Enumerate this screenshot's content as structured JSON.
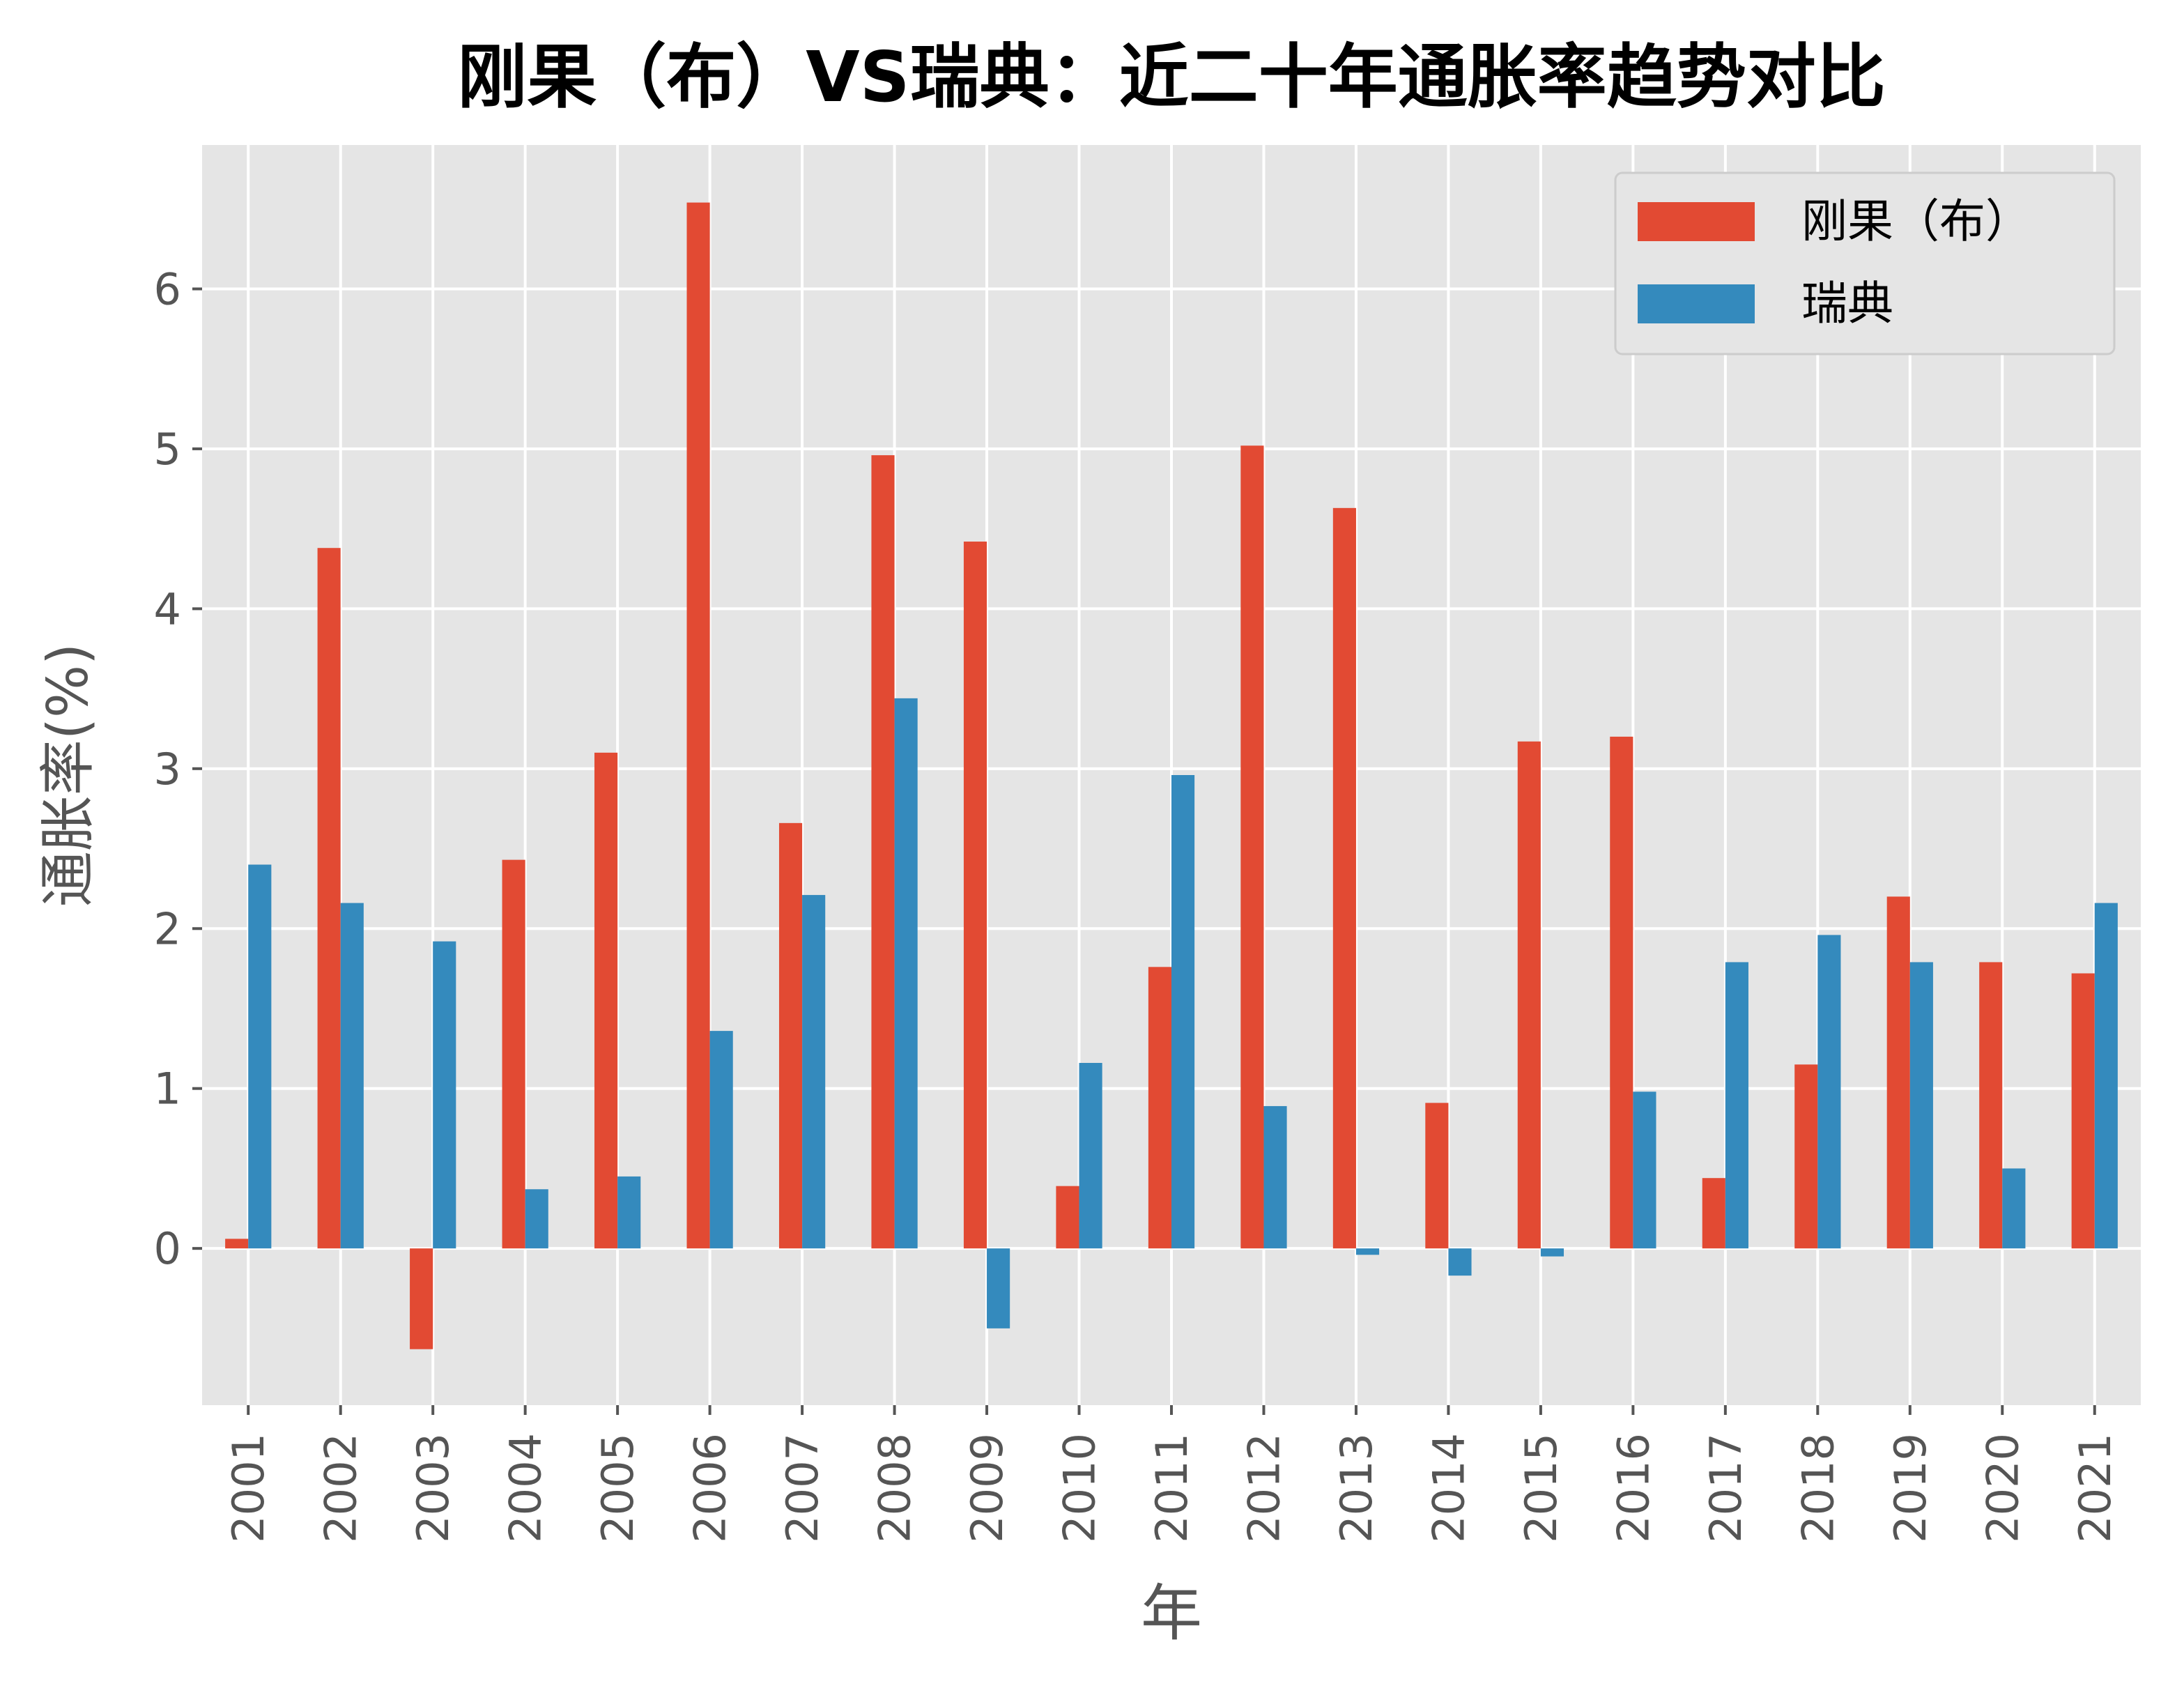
{
  "chart_data": {
    "type": "bar",
    "title": "刚果（布）VS瑞典：近二十年通胀率趋势对比",
    "xlabel": "年",
    "ylabel": "通胀率(%)",
    "categories": [
      "2001",
      "2002",
      "2003",
      "2004",
      "2005",
      "2006",
      "2007",
      "2008",
      "2009",
      "2010",
      "2011",
      "2012",
      "2013",
      "2014",
      "2015",
      "2016",
      "2017",
      "2018",
      "2019",
      "2020",
      "2021"
    ],
    "series": [
      {
        "name": "刚果（布）",
        "color": "#E24A33",
        "values": [
          0.06,
          4.38,
          -0.63,
          2.43,
          3.1,
          6.54,
          2.66,
          4.96,
          4.42,
          0.39,
          1.76,
          5.02,
          4.63,
          0.91,
          3.17,
          3.2,
          0.44,
          1.15,
          2.2,
          1.79,
          1.72
        ]
      },
      {
        "name": "瑞典",
        "color": "#348ABD",
        "values": [
          2.4,
          2.16,
          1.92,
          0.37,
          0.45,
          1.36,
          2.21,
          3.44,
          -0.5,
          1.16,
          2.96,
          0.89,
          -0.04,
          -0.17,
          -0.05,
          0.98,
          1.79,
          1.96,
          1.79,
          0.5,
          2.16
        ]
      }
    ],
    "yticks": [
      0,
      1,
      2,
      3,
      4,
      5,
      6
    ],
    "ylim": [
      -0.98,
      6.9
    ],
    "grid": true,
    "legend": "top-right",
    "background": "#E5E5E5"
  }
}
